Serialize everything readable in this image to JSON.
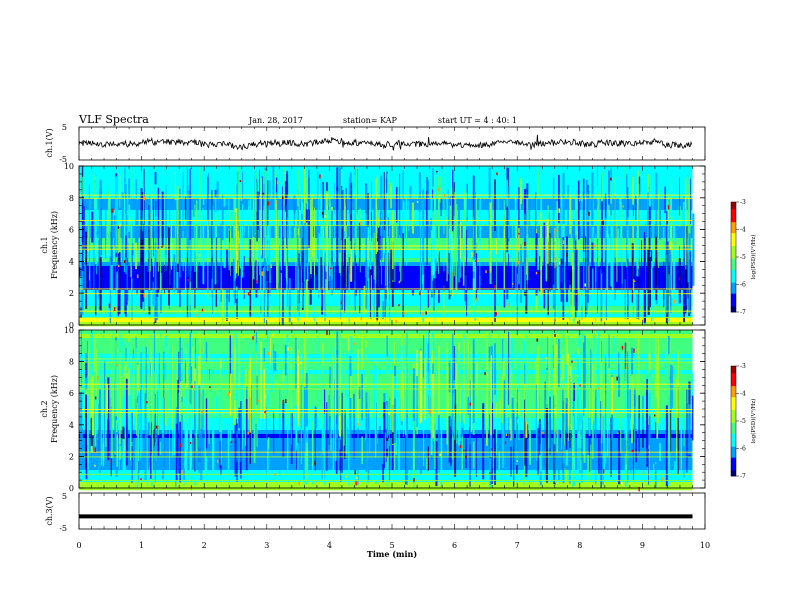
{
  "header": {
    "title": "VLF Spectra",
    "date": "Jan. 28, 2017",
    "station": "station= KAP",
    "start": "start UT =  4 : 40: 1"
  },
  "colors": {
    "colormap": [
      "#00007a",
      "#0000ff",
      "#00a0ff",
      "#00ffff",
      "#40ff80",
      "#a0ff20",
      "#ffff00",
      "#ffa000",
      "#ff0000",
      "#a00000"
    ],
    "waveform": "#000000"
  },
  "chart_data": [
    {
      "type": "line",
      "panel": "ch1-waveform",
      "ylabel": "ch.1(V)",
      "xlim": [
        0,
        10
      ],
      "ylim": [
        -5,
        5
      ],
      "y_ticks": [
        "5",
        "-5"
      ],
      "data_extent_min": 9.8,
      "description_of_trace": "noisy waveform near 0 V, amplitude about ±2 V"
    },
    {
      "type": "heatmap",
      "panel": "ch1-spectrogram",
      "ylabel": "ch.1\nFrequency (kHz)",
      "xlim": [
        0,
        10
      ],
      "ylim": [
        0,
        10
      ],
      "y_ticks": [
        "0",
        "2",
        "4",
        "6",
        "8",
        "10"
      ],
      "colorbar": {
        "label": "log(PSD)(V²/Hz)",
        "ticks": [
          "-3",
          "-4",
          "-5",
          "-6",
          "-7"
        ],
        "range": [
          -7,
          -3
        ]
      }
    },
    {
      "type": "heatmap",
      "panel": "ch2-spectrogram",
      "ylabel": "ch.2\nFrequency (kHz)",
      "xlim": [
        0,
        10
      ],
      "ylim": [
        0,
        10
      ],
      "y_ticks": [
        "0",
        "2",
        "4",
        "6",
        "8",
        "10"
      ],
      "colorbar": {
        "label": "log(PSD)(V²/Hz)",
        "ticks": [
          "-3",
          "-4",
          "-5",
          "-6",
          "-7"
        ],
        "range": [
          -7,
          -3
        ]
      }
    },
    {
      "type": "line",
      "panel": "ch3-waveform",
      "ylabel": "ch.3(V)",
      "xlim": [
        0,
        10
      ],
      "ylim": [
        -5,
        5
      ],
      "y_ticks": [
        "5",
        "-5"
      ],
      "level": -1.5
    }
  ],
  "x_axis": {
    "label": "Time (min)",
    "ticks": [
      "0",
      "1",
      "2",
      "3",
      "4",
      "5",
      "6",
      "7",
      "8",
      "9",
      "10"
    ]
  }
}
